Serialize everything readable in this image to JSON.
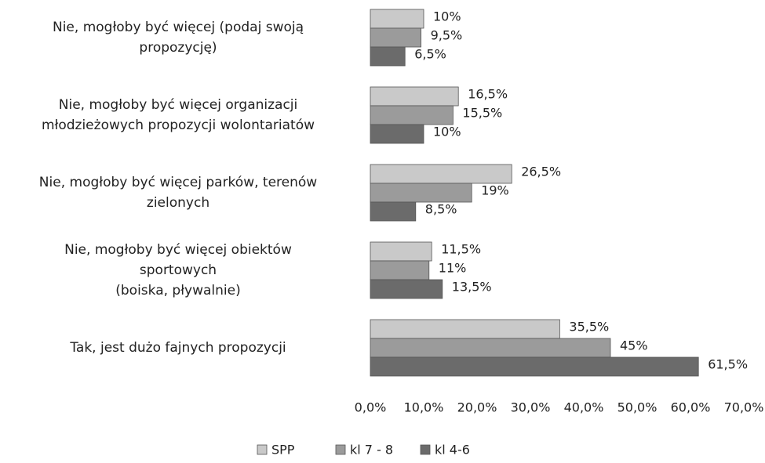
{
  "chart_data": {
    "type": "hbar",
    "categories": [
      "Nie, mogłoby być więcej (podaj swoją\npropozycję)",
      "Nie, mogłoby być więcej organizacji\nmłodzieżowych propozycji wolontariatów",
      "Nie, mogłoby być więcej parków, terenów\nzielonych",
      "Nie, mogłoby być więcej obiektów\nsportowych\n(boiska, pływalnie)",
      "Tak, jest dużo fajnych propozycji"
    ],
    "series": [
      {
        "name": "SPP",
        "color": "#c9c9c9",
        "values": [
          10,
          16.5,
          26.5,
          11.5,
          35.5
        ],
        "value_labels": [
          "10%",
          "16,5%",
          "26,5%",
          "11,5%",
          "35,5%"
        ]
      },
      {
        "name": "kl 7 - 8",
        "color": "#9b9b9b",
        "values": [
          9.5,
          15.5,
          19,
          11,
          45
        ],
        "value_labels": [
          "9,5%",
          "15,5%",
          "19%",
          "11%",
          "45%"
        ]
      },
      {
        "name": "kl 4-6",
        "color": "#6b6b6b",
        "values": [
          6.5,
          10,
          8.5,
          13.5,
          61.5
        ],
        "value_labels": [
          "6,5%",
          "10%",
          "8,5%",
          "13,5%",
          "61,5%"
        ]
      }
    ],
    "xlim": [
      0,
      70
    ],
    "xticks": [
      {
        "value": 0,
        "label": "0,0%"
      },
      {
        "value": 10,
        "label": "10,0%"
      },
      {
        "value": 20,
        "label": "20,0%"
      },
      {
        "value": 30,
        "label": "30,0%"
      },
      {
        "value": 40,
        "label": "40,0%"
      },
      {
        "value": 50,
        "label": "50,0%"
      },
      {
        "value": 60,
        "label": "60,0%"
      },
      {
        "value": 70,
        "label": "70,0%"
      }
    ],
    "legend": "bottom"
  }
}
